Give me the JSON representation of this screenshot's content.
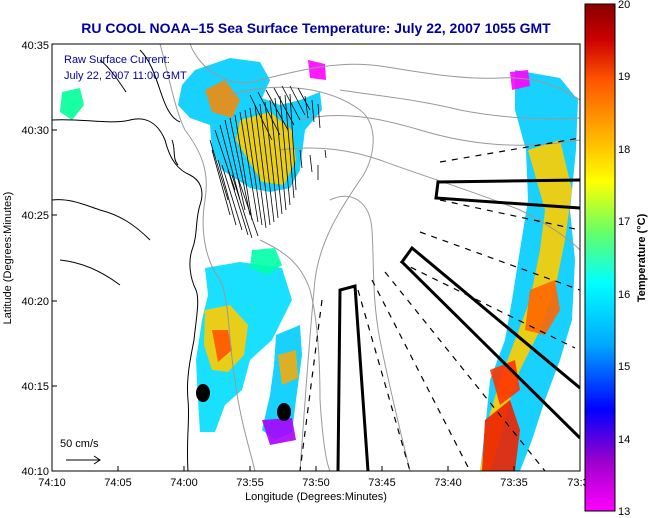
{
  "title": "RU COOL  NOAA–15  Sea Surface Temperature:  July 22, 2007 1055 GMT",
  "annotation": {
    "line1": "Raw Surface Current:",
    "line2": "July 22, 2007 11:00 GMT"
  },
  "scale_label": "50 cm/s",
  "x_axis": {
    "label": "Longitude (Degrees:Minutes)",
    "ticks": [
      "74:10",
      "74:05",
      "74:00",
      "73:55",
      "73:50",
      "73:45",
      "73:40",
      "73:35",
      "73:3"
    ]
  },
  "y_axis": {
    "label": "Latitude (Degrees:Minutes)",
    "ticks": [
      "40:35",
      "40:30",
      "40:25",
      "40:20",
      "40:15",
      "40:10"
    ]
  },
  "colorbar": {
    "label": "Temperature (°C)",
    "ticks": [
      "20",
      "19",
      "18",
      "17",
      "16",
      "15",
      "14",
      "13"
    ],
    "range": [
      13,
      20
    ],
    "colors": [
      "#ff00ff",
      "#9900cc",
      "#0000ff",
      "#00aaff",
      "#00ffff",
      "#66ff66",
      "#ffff00",
      "#ffaa00",
      "#ff5500",
      "#cc0000",
      "#880000"
    ]
  },
  "colors": {
    "title": "#0000a0",
    "land_outline": "#000000",
    "bathymetry": "#999999"
  }
}
